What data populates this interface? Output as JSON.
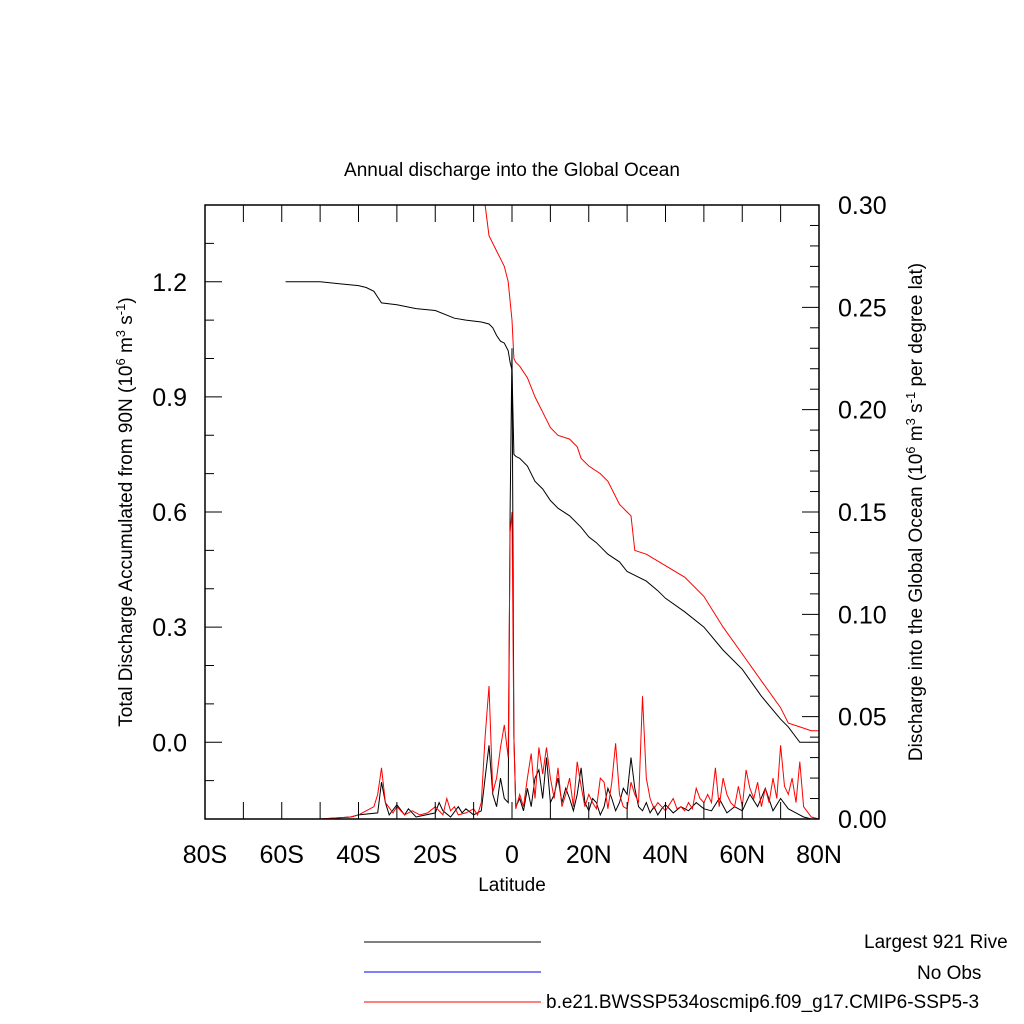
{
  "chart_data": {
    "type": "line",
    "title": "Annual discharge into the Global Ocean",
    "xlabel": "Latitude",
    "ylabel_left": {
      "main": "Total Discharge Accumulated from 90N (10",
      "sup1": "6",
      "mid1": " m",
      "sup2": "3",
      "mid2": " s",
      "sup3": "-1",
      "end": ")"
    },
    "ylabel_right": {
      "main": "Discharge into the Global Ocean (10",
      "sup1": "6",
      "mid1": " m",
      "sup2": "3",
      "mid2": " s",
      "sup3": "-1",
      "end": " per degree lat)"
    },
    "xlim": [
      -80,
      80
    ],
    "ylim_left": [
      -0.2,
      1.4
    ],
    "ylim_right": [
      0.0,
      0.3
    ],
    "x_ticks": [
      {
        "value": -80,
        "label": "80S"
      },
      {
        "value": -60,
        "label": "60S"
      },
      {
        "value": -40,
        "label": "40S"
      },
      {
        "value": -20,
        "label": "20S"
      },
      {
        "value": 0,
        "label": "0"
      },
      {
        "value": 20,
        "label": "20N"
      },
      {
        "value": 40,
        "label": "40N"
      },
      {
        "value": 60,
        "label": "60N"
      },
      {
        "value": 80,
        "label": "80N"
      }
    ],
    "y_ticks_left": [
      {
        "value": 0.0,
        "label": "0.0"
      },
      {
        "value": 0.3,
        "label": "0.3"
      },
      {
        "value": 0.6,
        "label": "0.6"
      },
      {
        "value": 0.9,
        "label": "0.9"
      },
      {
        "value": 1.2,
        "label": "1.2"
      }
    ],
    "y_ticks_right": [
      {
        "value": 0.0,
        "label": "0.00"
      },
      {
        "value": 0.05,
        "label": "0.05"
      },
      {
        "value": 0.1,
        "label": "0.10"
      },
      {
        "value": 0.15,
        "label": "0.15"
      },
      {
        "value": 0.2,
        "label": "0.20"
      },
      {
        "value": 0.25,
        "label": "0.25"
      },
      {
        "value": 0.3,
        "label": "0.30"
      }
    ],
    "legend": [
      {
        "label": "Largest 921 Rive",
        "color": "#000000"
      },
      {
        "label": "No Obs",
        "color": "#0000ff"
      },
      {
        "label": "b.e21.BWSSP534oscmip6.f09_g17.CMIP6-SSP5-3",
        "color": "#ff0000"
      }
    ],
    "series": [
      {
        "color": "#000000",
        "axis": "left",
        "x": [
          -59,
          -50,
          -45,
          -40,
          -38,
          -36,
          -35,
          -34,
          -30,
          -25,
          -20,
          -15,
          -12,
          -8,
          -6,
          -5,
          -4,
          -3,
          -2,
          -1,
          -0.5,
          0,
          0.5,
          1,
          2,
          4,
          6,
          8,
          10,
          12,
          15,
          18,
          20,
          22,
          25,
          28,
          30,
          32,
          35,
          38,
          40,
          45,
          50,
          55,
          60,
          65,
          70,
          72,
          75,
          78,
          80
        ],
        "y": [
          1.2,
          1.2,
          1.195,
          1.19,
          1.185,
          1.175,
          1.16,
          1.145,
          1.14,
          1.13,
          1.125,
          1.105,
          1.1,
          1.095,
          1.09,
          1.08,
          1.06,
          1.045,
          1.04,
          1.02,
          0.99,
          0.97,
          0.75,
          0.745,
          0.74,
          0.72,
          0.68,
          0.66,
          0.63,
          0.61,
          0.59,
          0.56,
          0.535,
          0.52,
          0.49,
          0.47,
          0.445,
          0.435,
          0.42,
          0.395,
          0.375,
          0.34,
          0.3,
          0.24,
          0.19,
          0.12,
          0.06,
          0.04,
          0.0,
          0.0,
          0.0
        ]
      },
      {
        "color": "#ff0000",
        "axis": "left",
        "x": [
          -7,
          -6,
          -5,
          -4,
          -3,
          -2,
          -1,
          -0.5,
          0,
          0.5,
          1,
          2,
          4,
          6,
          8,
          10,
          12,
          15,
          17,
          18,
          20,
          23,
          25,
          28,
          30,
          31,
          32,
          35,
          40,
          45,
          50,
          55,
          60,
          65,
          70,
          72,
          75,
          78,
          80
        ],
        "y": [
          1.4,
          1.32,
          1.3,
          1.28,
          1.26,
          1.24,
          1.2,
          1.15,
          1.1,
          1.0,
          0.99,
          0.98,
          0.95,
          0.9,
          0.86,
          0.82,
          0.8,
          0.79,
          0.77,
          0.74,
          0.72,
          0.7,
          0.68,
          0.62,
          0.6,
          0.59,
          0.5,
          0.49,
          0.46,
          0.43,
          0.38,
          0.3,
          0.23,
          0.16,
          0.09,
          0.05,
          0.04,
          0.03,
          0.03
        ]
      },
      {
        "color": "#000000",
        "axis": "right",
        "x": [
          -80,
          -60,
          -50,
          -42,
          -40,
          -35,
          -34,
          -33,
          -32,
          -30,
          -28,
          -27,
          -25,
          -20,
          -19,
          -18,
          -16,
          -14,
          -13,
          -12,
          -10,
          -8,
          -7,
          -6,
          -5,
          -4,
          -3,
          -2,
          -1,
          -0.5,
          0,
          0.5,
          1,
          2,
          3,
          4,
          5,
          6,
          7,
          8,
          9,
          10,
          11,
          12,
          13,
          14,
          15,
          16,
          17,
          18,
          19,
          20,
          21,
          22,
          23,
          24,
          25,
          26,
          27,
          28,
          29,
          30,
          31,
          32,
          33,
          34,
          35,
          36,
          37,
          38,
          39,
          40,
          42,
          44,
          46,
          48,
          50,
          52,
          54,
          56,
          58,
          60,
          62,
          64,
          66,
          68,
          70,
          72,
          74,
          76,
          78,
          80
        ],
        "y": [
          0.0,
          0.0,
          0.0,
          0.001,
          0.002,
          0.003,
          0.018,
          0.008,
          0.002,
          0.007,
          0.002,
          0.005,
          0.001,
          0.003,
          0.008,
          0.004,
          0.001,
          0.006,
          0.003,
          0.005,
          0.002,
          0.004,
          0.02,
          0.036,
          0.012,
          0.006,
          0.02,
          0.01,
          0.008,
          0.15,
          0.23,
          0.04,
          0.006,
          0.01,
          0.004,
          0.015,
          0.006,
          0.02,
          0.024,
          0.01,
          0.03,
          0.008,
          0.012,
          0.02,
          0.008,
          0.015,
          0.01,
          0.004,
          0.012,
          0.025,
          0.008,
          0.004,
          0.01,
          0.008,
          0.002,
          0.006,
          0.015,
          0.01,
          0.004,
          0.008,
          0.015,
          0.012,
          0.03,
          0.015,
          0.006,
          0.004,
          0.008,
          0.003,
          0.006,
          0.002,
          0.005,
          0.007,
          0.003,
          0.006,
          0.004,
          0.008,
          0.005,
          0.004,
          0.01,
          0.003,
          0.006,
          0.004,
          0.012,
          0.006,
          0.015,
          0.004,
          0.01,
          0.005,
          0.003,
          0.001,
          0.0,
          0.0
        ]
      },
      {
        "color": "#ff0000",
        "axis": "right",
        "x": [
          -80,
          -60,
          -50,
          -42,
          -40,
          -36,
          -35,
          -34,
          -33,
          -31,
          -30,
          -28,
          -26,
          -24,
          -22,
          -20,
          -18,
          -17,
          -16,
          -15,
          -14,
          -12,
          -10,
          -9,
          -8,
          -7,
          -6,
          -5,
          -4,
          -3,
          -2,
          -1,
          -0.5,
          0,
          0.5,
          1,
          2,
          3,
          4,
          5,
          6,
          7,
          8,
          9,
          10,
          11,
          12,
          13,
          14,
          15,
          16,
          17,
          18,
          19,
          20,
          21,
          22,
          23,
          24,
          25,
          26,
          27,
          28,
          29,
          30,
          31,
          32,
          33,
          34,
          35,
          36,
          37,
          38,
          39,
          40,
          41,
          42,
          43,
          44,
          45,
          46,
          47,
          48,
          49,
          50,
          51,
          52,
          53,
          54,
          55,
          56,
          57,
          58,
          59,
          60,
          61,
          62,
          63,
          64,
          65,
          66,
          67,
          68,
          69,
          70,
          71,
          72,
          73,
          74,
          75,
          76,
          78,
          80
        ],
        "y": [
          0.0,
          0.0,
          0.0,
          0.001,
          0.002,
          0.006,
          0.012,
          0.025,
          0.008,
          0.003,
          0.006,
          0.002,
          0.004,
          0.002,
          0.003,
          0.006,
          0.002,
          0.01,
          0.004,
          0.006,
          0.002,
          0.003,
          0.005,
          0.002,
          0.008,
          0.04,
          0.065,
          0.013,
          0.02,
          0.035,
          0.046,
          0.03,
          0.14,
          0.15,
          0.04,
          0.005,
          0.012,
          0.006,
          0.02,
          0.032,
          0.01,
          0.035,
          0.022,
          0.035,
          0.02,
          0.01,
          0.025,
          0.006,
          0.012,
          0.02,
          0.006,
          0.028,
          0.016,
          0.006,
          0.012,
          0.008,
          0.005,
          0.02,
          0.018,
          0.005,
          0.018,
          0.037,
          0.012,
          0.006,
          0.005,
          0.018,
          0.012,
          0.008,
          0.06,
          0.02,
          0.01,
          0.005,
          0.008,
          0.006,
          0.004,
          0.007,
          0.01,
          0.005,
          0.006,
          0.004,
          0.008,
          0.005,
          0.015,
          0.01,
          0.008,
          0.012,
          0.008,
          0.025,
          0.006,
          0.02,
          0.012,
          0.008,
          0.006,
          0.016,
          0.006,
          0.024,
          0.015,
          0.01,
          0.018,
          0.006,
          0.015,
          0.008,
          0.02,
          0.01,
          0.036,
          0.016,
          0.012,
          0.02,
          0.008,
          0.028,
          0.006,
          0.001,
          0.0
        ]
      }
    ]
  }
}
